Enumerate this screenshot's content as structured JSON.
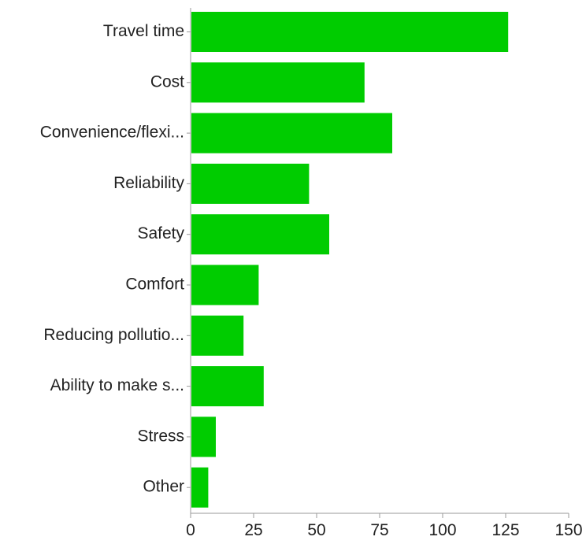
{
  "chart_data": {
    "type": "bar",
    "orientation": "horizontal",
    "title": "",
    "xlabel": "",
    "ylabel": "",
    "categories": [
      "Travel time",
      "Cost",
      "Convenience/flexi...",
      "Reliability",
      "Safety",
      "Comfort",
      "Reducing pollutio...",
      "Ability to make s...",
      "Stress",
      "Other"
    ],
    "values": [
      126,
      69,
      80,
      47,
      55,
      27,
      21,
      29,
      10,
      7
    ],
    "xlim": [
      0,
      150
    ],
    "ticks": [
      0,
      25,
      50,
      75,
      100,
      125,
      150
    ],
    "tick_labels": [
      "0",
      "25",
      "50",
      "75",
      "100",
      "125",
      "150"
    ],
    "bar_color": "#00cc00",
    "grid": false,
    "legend": "none"
  }
}
